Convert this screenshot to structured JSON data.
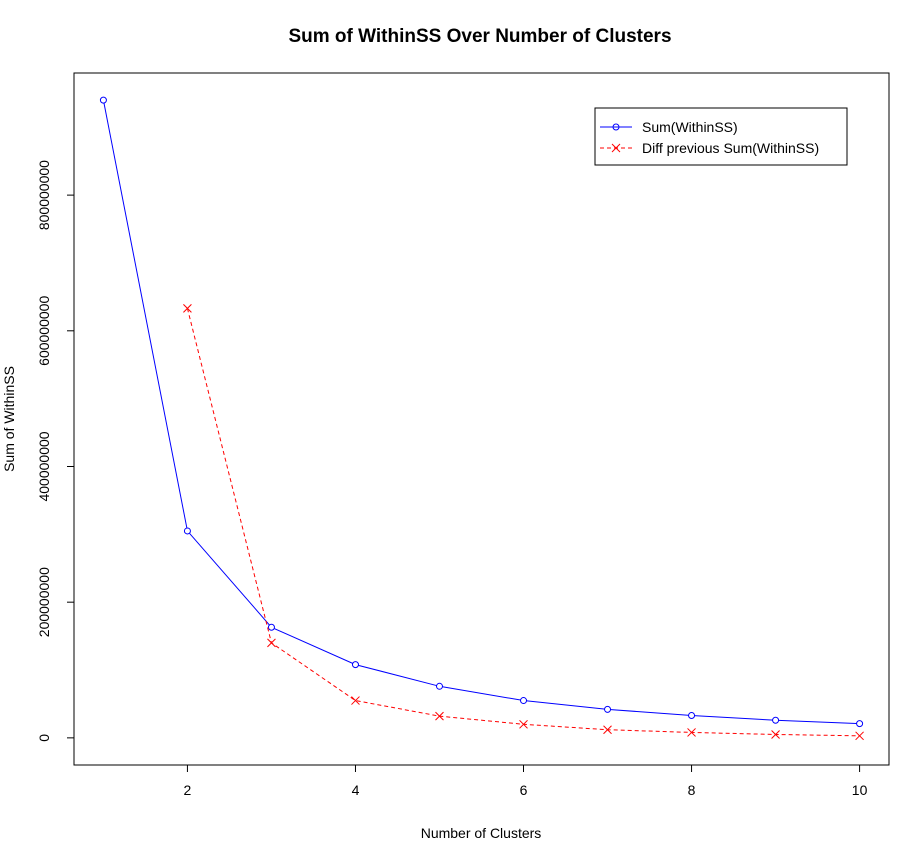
{
  "chart_data": {
    "type": "line",
    "title": "Sum of WithinSS Over Number of Clusters",
    "xlabel": "Number of Clusters",
    "ylabel": "Sum of WithinSS",
    "xlim": [
      0.65,
      10.35
    ],
    "ylim": [
      -40000000,
      980000000
    ],
    "x_ticks": [
      2,
      4,
      6,
      8,
      10
    ],
    "y_ticks": [
      0,
      200000000,
      400000000,
      600000000,
      800000000
    ],
    "y_tick_labels": [
      "0",
      "200000000",
      "400000000",
      "600000000",
      "800000000"
    ],
    "grid": false,
    "legend_position": "top-right",
    "series": [
      {
        "name": "Sum(WithinSS)",
        "color": "#0000ff",
        "line_style": "solid",
        "marker": "circle",
        "x": [
          1,
          2,
          3,
          4,
          5,
          6,
          7,
          8,
          9,
          10
        ],
        "values": [
          940000000,
          305000000,
          163000000,
          108000000,
          76000000,
          55000000,
          42000000,
          33000000,
          26000000,
          21000000
        ]
      },
      {
        "name": "Diff previous Sum(WithinSS)",
        "color": "#ff0000",
        "line_style": "dashed",
        "marker": "x",
        "x": [
          2,
          3,
          4,
          5,
          6,
          7,
          8,
          9,
          10
        ],
        "values": [
          633000000,
          140000000,
          55000000,
          32000000,
          20000000,
          12000000,
          8000000,
          5000000,
          3000000
        ]
      }
    ]
  }
}
